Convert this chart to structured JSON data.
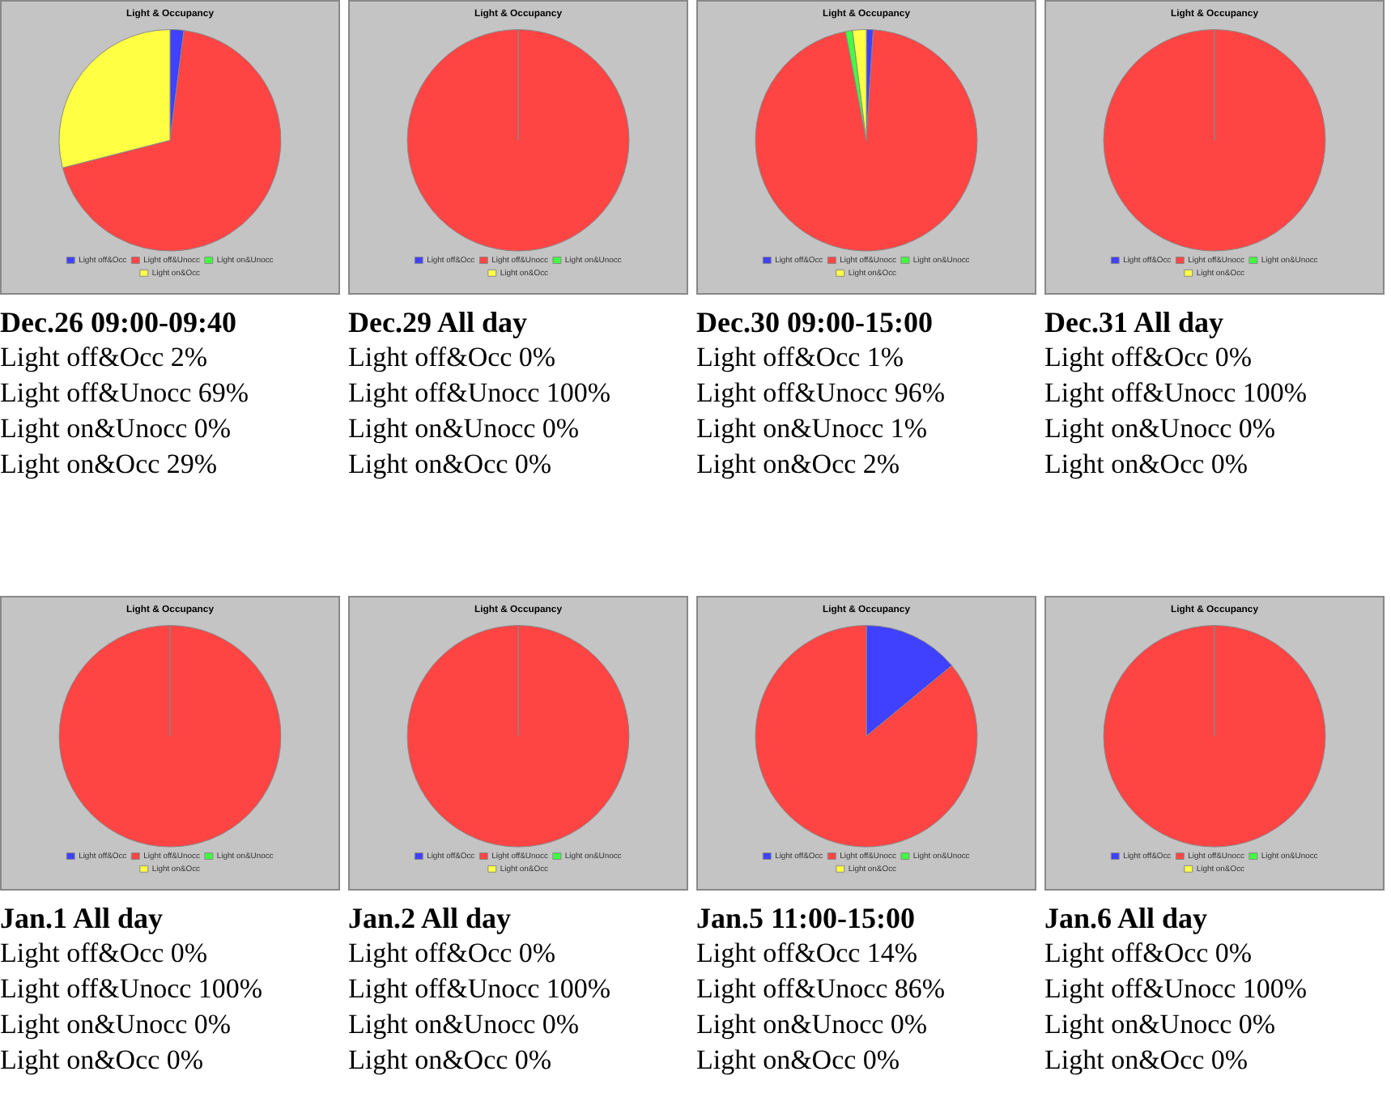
{
  "chart_data": [
    {
      "type": "pie",
      "title": "Light & Occupancy",
      "subtitle": "Dec.26 09:00-09:40",
      "categories": [
        "Light off&Occ",
        "Light off&Unocc",
        "Light on&Unocc",
        "Light on&Occ"
      ],
      "values": [
        2,
        69,
        0,
        29
      ],
      "value_labels": [
        "2%",
        "69%",
        "0%",
        "29%"
      ],
      "colors": [
        "#4040ff",
        "#ff4444",
        "#40ff40",
        "#ffff44"
      ],
      "legend": "bottom"
    },
    {
      "type": "pie",
      "title": "Light & Occupancy",
      "subtitle": "Dec.29 All day",
      "categories": [
        "Light off&Occ",
        "Light off&Unocc",
        "Light on&Unocc",
        "Light on&Occ"
      ],
      "values": [
        0,
        100,
        0,
        0
      ],
      "value_labels": [
        "0%",
        "100%",
        "0%",
        "0%"
      ],
      "colors": [
        "#4040ff",
        "#ff4444",
        "#40ff40",
        "#ffff44"
      ],
      "legend": "bottom"
    },
    {
      "type": "pie",
      "title": "Light & Occupancy",
      "subtitle": "Dec.30 09:00-15:00",
      "categories": [
        "Light off&Occ",
        "Light off&Unocc",
        "Light on&Unocc",
        "Light on&Occ"
      ],
      "values": [
        1,
        96,
        1,
        2
      ],
      "value_labels": [
        "1%",
        "96%",
        "1%",
        "2%"
      ],
      "colors": [
        "#4040ff",
        "#ff4444",
        "#40ff40",
        "#ffff44"
      ],
      "legend": "bottom"
    },
    {
      "type": "pie",
      "title": "Light & Occupancy",
      "subtitle": "Dec.31 All day",
      "categories": [
        "Light off&Occ",
        "Light off&Unocc",
        "Light on&Unocc",
        "Light on&Occ"
      ],
      "values": [
        0,
        100,
        0,
        0
      ],
      "value_labels": [
        "0%",
        "100%",
        "0%",
        "0%"
      ],
      "colors": [
        "#4040ff",
        "#ff4444",
        "#40ff40",
        "#ffff44"
      ],
      "legend": "bottom"
    },
    {
      "type": "pie",
      "title": "Light & Occupancy",
      "subtitle": "Jan.1 All day",
      "categories": [
        "Light off&Occ",
        "Light off&Unocc",
        "Light on&Unocc",
        "Light on&Occ"
      ],
      "values": [
        0,
        100,
        0,
        0
      ],
      "value_labels": [
        "0%",
        "100%",
        "0%",
        "0%"
      ],
      "colors": [
        "#4040ff",
        "#ff4444",
        "#40ff40",
        "#ffff44"
      ],
      "legend": "bottom"
    },
    {
      "type": "pie",
      "title": "Light & Occupancy",
      "subtitle": "Jan.2 All day",
      "categories": [
        "Light off&Occ",
        "Light off&Unocc",
        "Light on&Unocc",
        "Light on&Occ"
      ],
      "values": [
        0,
        100,
        0,
        0
      ],
      "value_labels": [
        "0%",
        "100%",
        "0%",
        "0%"
      ],
      "colors": [
        "#4040ff",
        "#ff4444",
        "#40ff40",
        "#ffff44"
      ],
      "legend": "bottom"
    },
    {
      "type": "pie",
      "title": "Light & Occupancy",
      "subtitle": "Jan.5 11:00-15:00",
      "categories": [
        "Light off&Occ",
        "Light off&Unocc",
        "Light on&Unocc",
        "Light on&Occ"
      ],
      "values": [
        14,
        86,
        0,
        0
      ],
      "value_labels": [
        "14%",
        "86%",
        "0%",
        "0%"
      ],
      "colors": [
        "#4040ff",
        "#ff4444",
        "#40ff40",
        "#ffff44"
      ],
      "legend": "bottom"
    },
    {
      "type": "pie",
      "title": "Light & Occupancy",
      "subtitle": "Jan.6 All day",
      "categories": [
        "Light off&Occ",
        "Light off&Unocc",
        "Light on&Unocc",
        "Light on&Occ"
      ],
      "values": [
        0,
        100,
        0,
        0
      ],
      "value_labels": [
        "0%",
        "100%",
        "0%",
        "0%"
      ],
      "colors": [
        "#4040ff",
        "#ff4444",
        "#40ff40",
        "#ffff44"
      ],
      "legend": "bottom"
    }
  ]
}
